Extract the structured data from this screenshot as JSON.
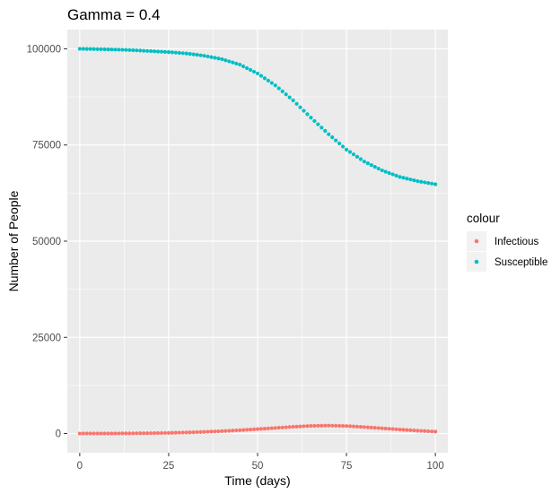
{
  "chart_data": {
    "type": "scatter",
    "title": "Gamma = 0.4",
    "xlabel": "Time (days)",
    "ylabel": "Number of People",
    "xlim": [
      -3.5,
      103.5
    ],
    "ylim": [
      -5000,
      105000
    ],
    "x_ticks": [
      0,
      25,
      50,
      75,
      100
    ],
    "x_tick_labels": [
      "0",
      "25",
      "50",
      "75",
      "100"
    ],
    "y_ticks": [
      0,
      25000,
      50000,
      75000,
      100000
    ],
    "y_tick_labels": [
      "0",
      "25000",
      "50000",
      "75000",
      "100000"
    ],
    "grid": true,
    "legend": {
      "title": "colour",
      "placement": "right",
      "entries": [
        {
          "label": "Infectious",
          "color": "#F8766D"
        },
        {
          "label": "Susceptible",
          "color": "#00BFC4"
        }
      ]
    },
    "series": [
      {
        "name": "Infectious",
        "color": "#F8766D",
        "x": [
          0,
          10,
          20,
          25,
          30,
          35,
          40,
          45,
          50,
          55,
          60,
          65,
          70,
          75,
          80,
          85,
          90,
          95,
          100
        ],
        "y": [
          0,
          20,
          80,
          160,
          280,
          420,
          620,
          860,
          1150,
          1450,
          1750,
          1980,
          2060,
          1950,
          1680,
          1360,
          1040,
          740,
          500
        ]
      },
      {
        "name": "Susceptible",
        "color": "#00BFC4",
        "x": [
          0,
          5,
          10,
          15,
          20,
          25,
          30,
          35,
          40,
          45,
          50,
          55,
          60,
          65,
          70,
          75,
          80,
          85,
          90,
          95,
          100
        ],
        "y": [
          100000,
          99920,
          99800,
          99650,
          99400,
          99150,
          98800,
          98200,
          97300,
          95900,
          93600,
          90500,
          86600,
          82100,
          77800,
          73800,
          70700,
          68400,
          66700,
          65600,
          64800
        ]
      }
    ]
  }
}
